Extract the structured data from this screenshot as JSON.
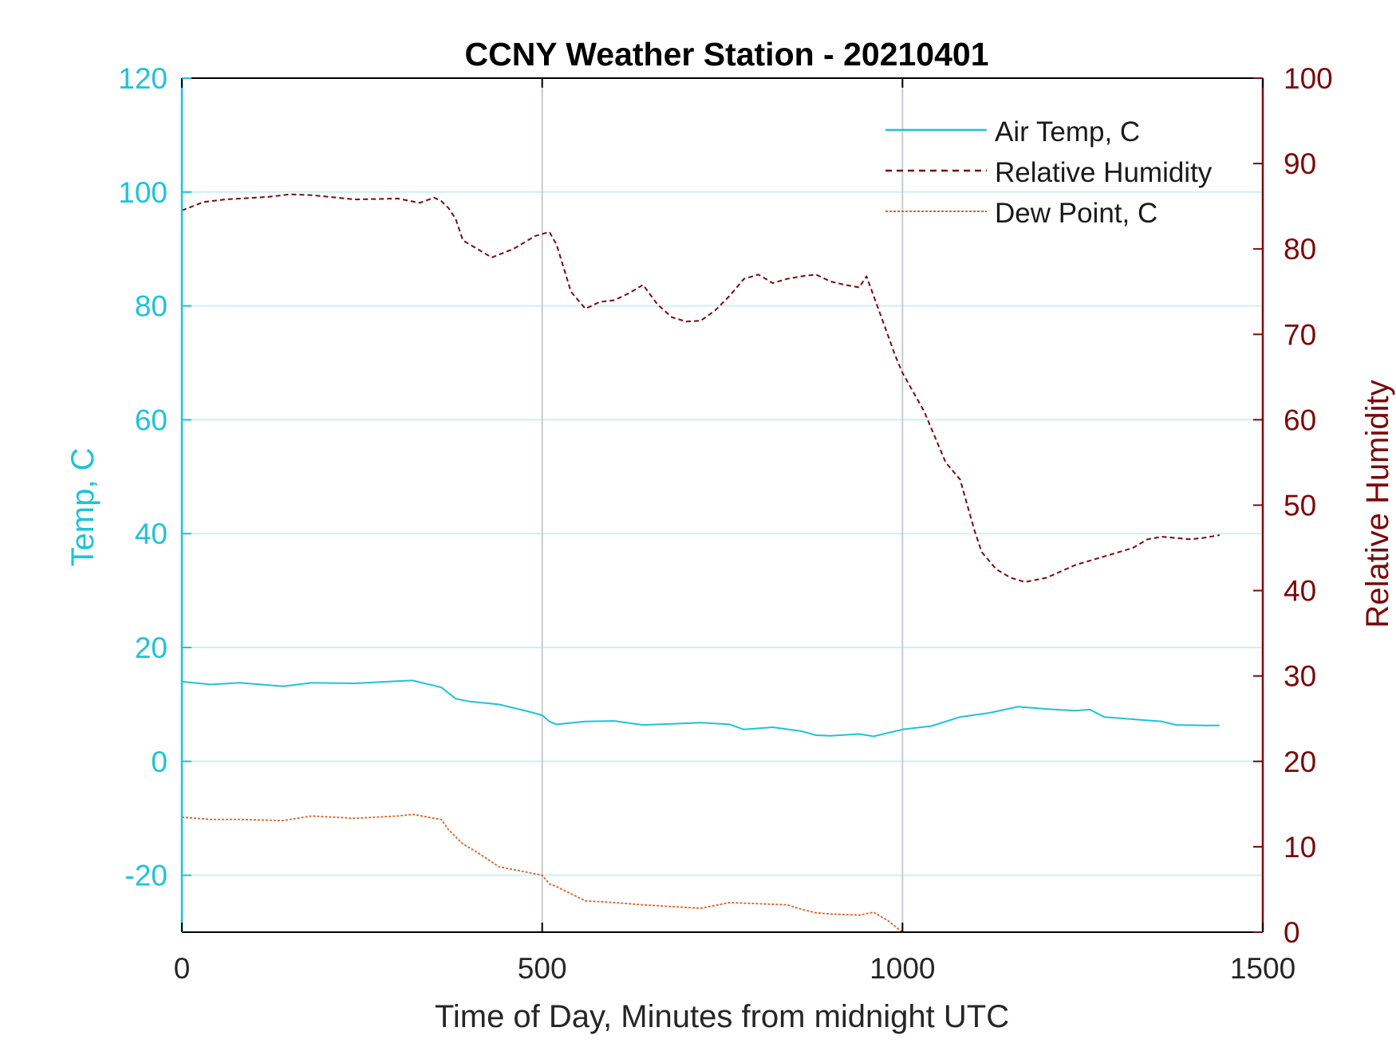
{
  "colors": {
    "temp": "#1ec3d8",
    "rh": "#7a0a0a",
    "dew": "#d9622b",
    "grid_x": "#c8ccd2",
    "grid_y": "#cfeff6",
    "axis": "#000000",
    "text": "#222222"
  },
  "chart_data": {
    "type": "line",
    "title": "CCNY Weather Station - 20210401",
    "xlabel": "Time of Day, Minutes from midnight UTC",
    "ylabel_left": "Temp, C",
    "ylabel_right": "Relative Humidity",
    "xlim": [
      0,
      1500
    ],
    "ylim_left": [
      -30,
      120
    ],
    "ylim_right": [
      0,
      100
    ],
    "xticks": [
      0,
      500,
      1000,
      1500
    ],
    "xtick_labels": [
      "0",
      "500",
      "1000",
      "1500"
    ],
    "yticks_left": [
      -20,
      0,
      20,
      40,
      60,
      80,
      100,
      120
    ],
    "ytick_labels_left": [
      "-20",
      "0",
      "20",
      "40",
      "60",
      "80",
      "100",
      "120"
    ],
    "yticks_right": [
      0,
      10,
      20,
      30,
      40,
      50,
      60,
      70,
      80,
      90,
      100
    ],
    "ytick_labels_right": [
      "0",
      "10",
      "20",
      "30",
      "40",
      "50",
      "60",
      "70",
      "80",
      "90",
      "100"
    ],
    "grid": true,
    "legend_position": "top-right",
    "series": [
      {
        "name": "Air Temp, C",
        "axis": "left",
        "style": "solid",
        "x": [
          0,
          40,
          80,
          140,
          180,
          240,
          300,
          320,
          350,
          360,
          380,
          400,
          440,
          480,
          500,
          510,
          520,
          560,
          600,
          640,
          680,
          720,
          760,
          780,
          820,
          860,
          880,
          900,
          940,
          960,
          1000,
          1040,
          1080,
          1120,
          1160,
          1200,
          1240,
          1260,
          1280,
          1320,
          1360,
          1380,
          1420,
          1440
        ],
        "y": [
          14,
          13.5,
          13.8,
          13.2,
          13.8,
          13.7,
          14.1,
          14.2,
          13.3,
          13.0,
          11.0,
          10.5,
          10.0,
          8.8,
          8.1,
          7.0,
          6.5,
          7.0,
          7.1,
          6.4,
          6.6,
          6.8,
          6.5,
          5.6,
          6.0,
          5.3,
          4.6,
          4.5,
          4.8,
          4.4,
          5.6,
          6.2,
          7.8,
          8.5,
          9.6,
          9.2,
          8.9,
          9.1,
          7.8,
          7.4,
          7.0,
          6.4,
          6.3,
          6.3
        ]
      },
      {
        "name": "Relative Humidity",
        "axis": "right",
        "style": "dashed",
        "x": [
          0,
          30,
          60,
          120,
          150,
          180,
          240,
          300,
          330,
          350,
          360,
          370,
          380,
          390,
          400,
          430,
          460,
          490,
          510,
          520,
          540,
          560,
          580,
          600,
          620,
          640,
          660,
          680,
          700,
          720,
          740,
          760,
          780,
          800,
          820,
          840,
          860,
          880,
          900,
          920,
          940,
          950,
          960,
          975,
          990,
          1000,
          1030,
          1060,
          1080,
          1090,
          1100,
          1110,
          1130,
          1150,
          1170,
          1200,
          1240,
          1280,
          1320,
          1340,
          1360,
          1400,
          1420,
          1440
        ],
        "y": [
          84.5,
          85.5,
          85.8,
          86.1,
          86.4,
          86.3,
          85.8,
          85.9,
          85.4,
          86.0,
          85.6,
          84.8,
          83.5,
          81.0,
          80.5,
          79.0,
          80.0,
          81.5,
          82.0,
          80.5,
          75.0,
          73.0,
          73.8,
          74.0,
          74.8,
          75.8,
          73.5,
          72.0,
          71.5,
          71.6,
          72.8,
          74.5,
          76.5,
          77.0,
          76.0,
          76.5,
          76.8,
          77.0,
          76.2,
          75.8,
          75.5,
          76.8,
          74.5,
          71.0,
          67.5,
          65.5,
          61.0,
          55.0,
          53.0,
          50.0,
          47.0,
          44.5,
          42.5,
          41.5,
          41.0,
          41.5,
          43.0,
          44.0,
          45.0,
          46.0,
          46.3,
          46.0,
          46.2,
          46.5
        ]
      },
      {
        "name": "Dew Point, C",
        "axis": "left",
        "style": "dotted",
        "x": [
          0,
          40,
          80,
          140,
          180,
          240,
          300,
          320,
          350,
          360,
          370,
          390,
          410,
          440,
          480,
          500,
          510,
          520,
          560,
          600,
          640,
          680,
          720,
          760,
          800,
          840,
          860,
          880,
          900,
          940,
          960,
          980,
          1000
        ],
        "y": [
          -9.8,
          -10.2,
          -10.2,
          -10.4,
          -9.6,
          -10.0,
          -9.6,
          -9.3,
          -10.0,
          -10.2,
          -12.0,
          -14.5,
          -16.0,
          -18.5,
          -19.5,
          -20.0,
          -21.5,
          -22.0,
          -24.5,
          -24.8,
          -25.2,
          -25.5,
          -25.8,
          -24.8,
          -25.0,
          -25.2,
          -26.0,
          -26.6,
          -26.8,
          -27.0,
          -26.5,
          -28.0,
          -30.0
        ]
      }
    ]
  }
}
